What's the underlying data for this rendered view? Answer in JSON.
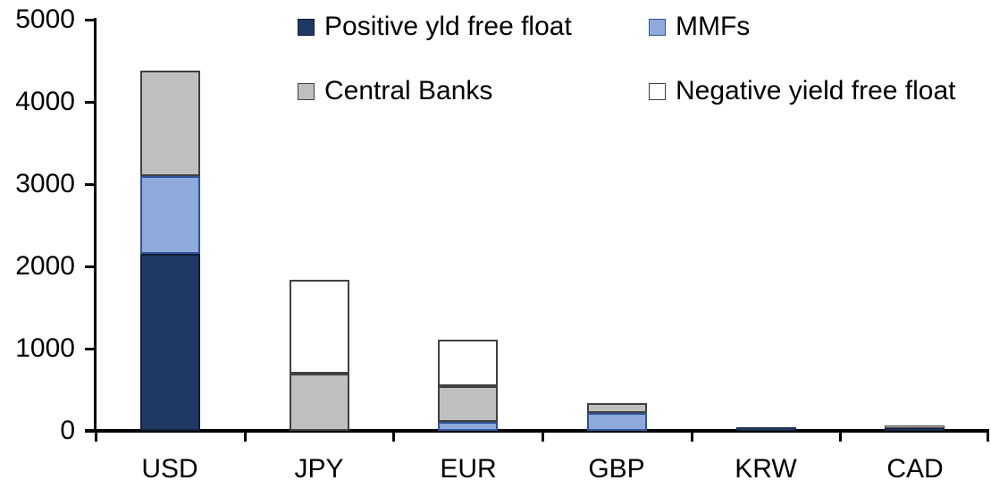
{
  "chart_data": {
    "type": "bar",
    "stacked": true,
    "title": "",
    "categories": [
      "USD",
      "JPY",
      "EUR",
      "GBP",
      "KRW",
      "CAD"
    ],
    "series": [
      {
        "name": "Positive yld free float",
        "color": "#1F3864",
        "border": "#101F38",
        "values": [
          2150,
          0,
          0,
          0,
          45,
          30
        ]
      },
      {
        "name": "MMFs",
        "color": "#8EAADB",
        "border": "#2E5597",
        "values": [
          950,
          0,
          110,
          220,
          0,
          0
        ]
      },
      {
        "name": "Central Banks",
        "color": "#BFBFBF",
        "border": "#404040",
        "values": [
          1280,
          700,
          430,
          115,
          0,
          30
        ]
      },
      {
        "name": "Negative yield free float",
        "color": "#FFFFFF",
        "border": "#404040",
        "values": [
          0,
          1140,
          570,
          0,
          0,
          0
        ]
      }
    ],
    "totals": [
      4380,
      1840,
      1110,
      335,
      45,
      60
    ],
    "ylim": [
      0,
      5000
    ],
    "yticks": [
      0,
      1000,
      2000,
      3000,
      4000,
      5000
    ],
    "xlabel": "",
    "ylabel": "",
    "grid": false,
    "legend_position": "top",
    "axis_color": "#000000",
    "text_color": "#000000",
    "background_color": "#FFFFFF"
  }
}
